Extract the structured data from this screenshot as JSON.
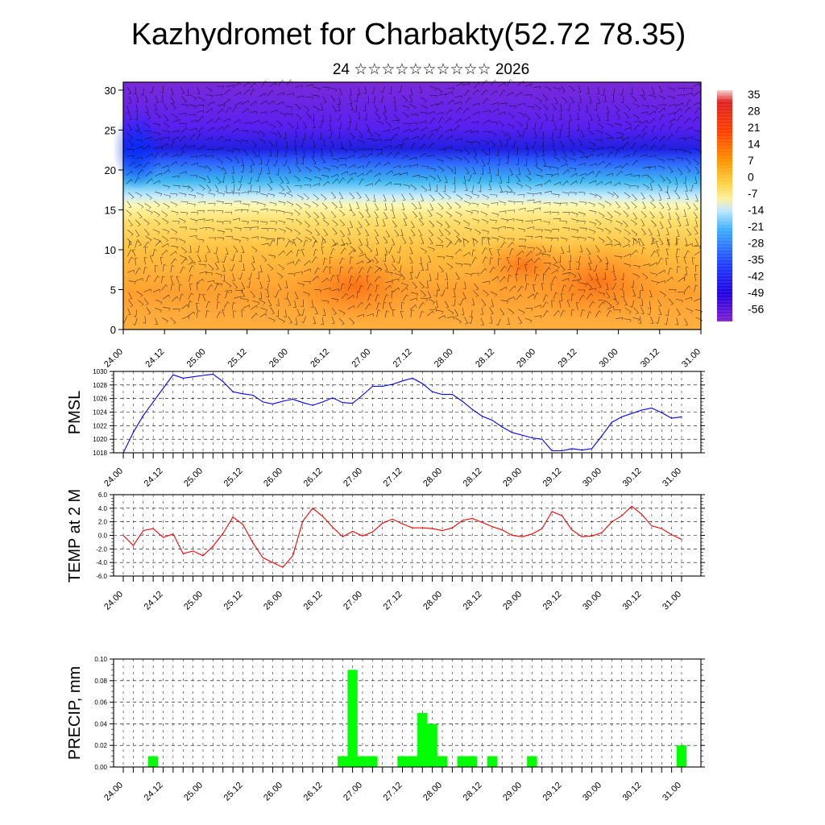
{
  "title": "Kazhydromet for Charbakty(52.72 78.35)",
  "subtitle": "24 ☆☆☆☆☆☆☆☆☆☆ 2026",
  "time_labels": [
    "24.00",
    "24.12",
    "25.00",
    "25.12",
    "26.00",
    "26.12",
    "27.00",
    "27.12",
    "28.00",
    "28.12",
    "29.00",
    "29.12",
    "30.00",
    "30.12",
    "31.00"
  ],
  "chart_data": [
    {
      "type": "heatmap",
      "name": "vertical temperature cross-section with wind barbs",
      "x_ticks": [
        "24.00",
        "24.12",
        "25.00",
        "25.12",
        "26.00",
        "26.12",
        "27.00",
        "27.12",
        "28.00",
        "28.12",
        "29.00",
        "29.12",
        "30.00",
        "30.12",
        "31.00"
      ],
      "y_ticks": [
        "0",
        "5",
        "10",
        "15",
        "20",
        "25",
        "30"
      ],
      "ylim": [
        0,
        31
      ],
      "colorbar_labels": [
        "35",
        "28",
        "21",
        "14",
        "7",
        "0",
        "-7",
        "-14",
        "-21",
        "-28",
        "-35",
        "-42",
        "-49",
        "-56"
      ],
      "colorbar_range": [
        -63,
        38
      ]
    },
    {
      "type": "line",
      "ylabel": "PMSL",
      "ylim": [
        1018,
        1030
      ],
      "y_ticks": [
        "1030",
        "1028",
        "1026",
        "1024",
        "1022",
        "1020",
        "1018"
      ],
      "x_ticks": [
        "24.00",
        "24.12",
        "25.00",
        "25.12",
        "26.00",
        "26.12",
        "27.00",
        "27.12",
        "28.00",
        "28.12",
        "29.00",
        "29.12",
        "30.00",
        "30.12",
        "31.00"
      ],
      "color": "#0000ff",
      "values": [
        1018.0,
        1021.0,
        1023.5,
        1025.5,
        1027.5,
        1029.5,
        1029.0,
        1029.2,
        1029.4,
        1029.6,
        1028.5,
        1027.0,
        1026.7,
        1026.5,
        1025.5,
        1025.2,
        1025.6,
        1025.9,
        1025.4,
        1025.0,
        1025.5,
        1026.1,
        1025.4,
        1025.3,
        1026.5,
        1027.8,
        1027.8,
        1028.1,
        1028.6,
        1029.0,
        1028.2,
        1027.0,
        1026.6,
        1026.6,
        1025.6,
        1024.4,
        1023.4,
        1022.8,
        1021.8,
        1021.0,
        1020.6,
        1020.2,
        1020.0,
        1018.3,
        1018.3,
        1018.6,
        1018.4,
        1018.6,
        1020.5,
        1022.5,
        1023.3,
        1023.8,
        1024.3,
        1024.6,
        1023.9,
        1023.1,
        1023.3
      ]
    },
    {
      "type": "line",
      "ylabel": "TEMP at 2 M",
      "ylim": [
        -6,
        6
      ],
      "y_ticks": [
        "6.0",
        "4.0",
        "2.0",
        "0.0",
        "-2.0",
        "-4.0",
        "-6.0"
      ],
      "x_ticks": [
        "24.00",
        "24.12",
        "25.00",
        "25.12",
        "26.00",
        "26.12",
        "27.00",
        "27.12",
        "28.00",
        "28.12",
        "29.00",
        "29.12",
        "30.00",
        "30.12",
        "31.00"
      ],
      "color": "#ff0000",
      "values": [
        0.0,
        -1.5,
        0.7,
        1.0,
        -0.3,
        0.2,
        -2.7,
        -2.3,
        -3.0,
        -1.6,
        0.3,
        2.7,
        1.6,
        -1.1,
        -3.3,
        -4.0,
        -4.7,
        -3.0,
        2.1,
        4.0,
        2.8,
        1.2,
        -0.2,
        0.6,
        -0.1,
        0.5,
        1.8,
        2.4,
        1.7,
        1.1,
        1.1,
        1.0,
        0.7,
        1.1,
        2.2,
        2.5,
        1.9,
        1.3,
        0.8,
        0.0,
        -0.2,
        0.2,
        1.0,
        3.5,
        2.9,
        0.8,
        -0.2,
        -0.1,
        0.4,
        2.0,
        2.9,
        4.3,
        3.1,
        1.4,
        1.0,
        0.1,
        -0.6
      ]
    },
    {
      "type": "bar",
      "ylabel": "PRECIP, mm",
      "ylim": [
        0,
        0.1
      ],
      "y_ticks": [
        "0.10",
        "0.08",
        "0.06",
        "0.04",
        "0.02",
        "0.00"
      ],
      "x_ticks": [
        "24.00",
        "24.12",
        "25.00",
        "25.12",
        "26.00",
        "26.12",
        "27.00",
        "27.12",
        "28.00",
        "28.12",
        "29.00",
        "29.12",
        "30.00",
        "30.12",
        "31.00"
      ],
      "color": "#00ff00",
      "values": [
        0,
        0,
        0,
        0.01,
        0,
        0,
        0,
        0,
        0,
        0,
        0,
        0,
        0,
        0,
        0,
        0,
        0,
        0,
        0,
        0,
        0,
        0,
        0.01,
        0.09,
        0.01,
        0.01,
        0,
        0,
        0.01,
        0.01,
        0.05,
        0.04,
        0.01,
        0,
        0.01,
        0.01,
        0,
        0.01,
        0,
        0,
        0,
        0.01,
        0,
        0,
        0,
        0,
        0,
        0,
        0,
        0,
        0,
        0,
        0,
        0,
        0,
        0,
        0.02
      ]
    }
  ]
}
